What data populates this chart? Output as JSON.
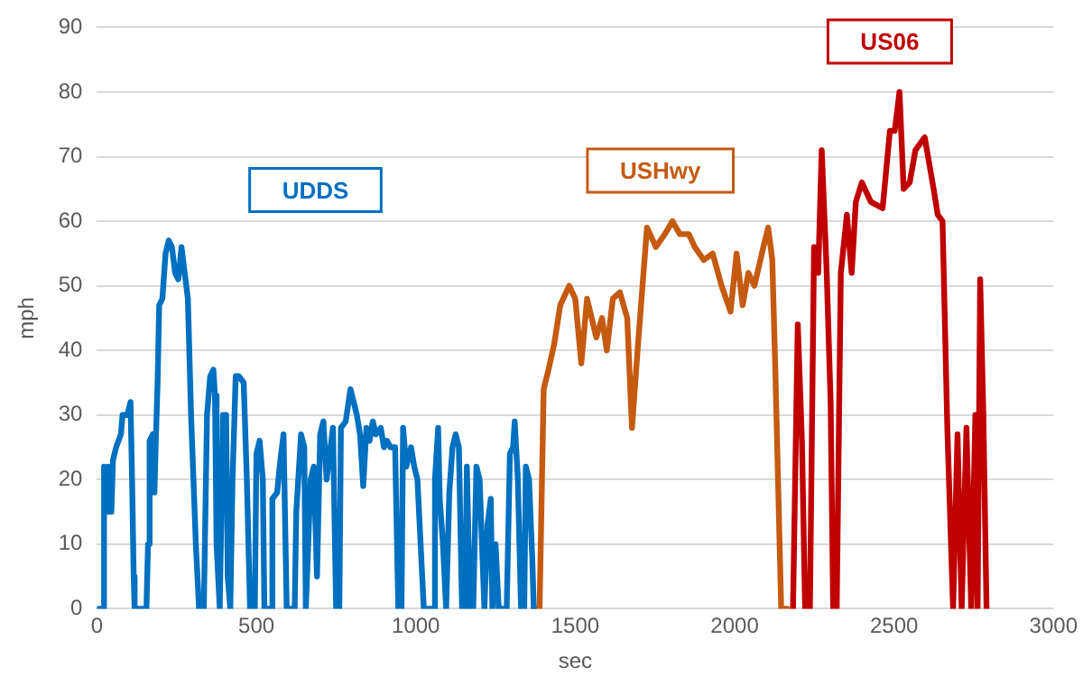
{
  "chart_data": {
    "type": "line",
    "xlabel": "sec",
    "ylabel": "mph",
    "xlim": [
      0,
      3000
    ],
    "xticks": [
      0,
      500,
      1000,
      1500,
      2000,
      2500,
      3000
    ],
    "ylim": [
      0,
      90
    ],
    "yticks": [
      0,
      10,
      20,
      30,
      40,
      50,
      60,
      70,
      80,
      90
    ],
    "grid": "y",
    "legend": false,
    "marker": "none",
    "line_style": "solid",
    "series": [
      {
        "name": "UDDS",
        "color": "#0070c0",
        "x": [
          0,
          20,
          22,
          30,
          35,
          45,
          50,
          60,
          75,
          80,
          95,
          105,
          110,
          115,
          118,
          155,
          160,
          165,
          175,
          180,
          185,
          190,
          195,
          205,
          215,
          225,
          235,
          245,
          255,
          265,
          275,
          285,
          295,
          310,
          320,
          335,
          345,
          355,
          365,
          370,
          375,
          385,
          395,
          405,
          410,
          418,
          425,
          435,
          445,
          460,
          470,
          480,
          495,
          500,
          510,
          520,
          525,
          545,
          550,
          565,
          575,
          585,
          595,
          620,
          625,
          640,
          650,
          655,
          670,
          680,
          690,
          700,
          710,
          720,
          730,
          740,
          750,
          760,
          765,
          780,
          795,
          805,
          815,
          825,
          835,
          845,
          855,
          865,
          875,
          890,
          900,
          910,
          920,
          935,
          945,
          955,
          960,
          970,
          985,
          995,
          1005,
          1025,
          1055,
          1060,
          1070,
          1075,
          1085,
          1095,
          1105,
          1115,
          1125,
          1135,
          1145,
          1155,
          1160,
          1170,
          1180,
          1190,
          1200,
          1215,
          1225,
          1235,
          1240,
          1250,
          1260,
          1285,
          1295,
          1305,
          1310,
          1320,
          1330,
          1340,
          1345,
          1355,
          1365,
          1370
        ],
        "values": [
          0,
          0,
          22,
          15,
          22,
          15,
          23,
          25,
          27,
          30,
          30,
          32,
          20,
          5,
          0,
          0,
          10,
          26,
          27,
          18,
          27,
          35,
          47,
          48,
          55,
          57,
          56,
          52,
          51,
          56,
          52,
          48,
          30,
          10,
          0,
          0,
          30,
          36,
          37,
          33,
          10,
          0,
          30,
          30,
          5,
          0,
          20,
          36,
          36,
          35,
          20,
          0,
          0,
          24,
          26,
          20,
          0,
          0,
          17,
          18,
          23,
          27,
          0,
          0,
          15,
          27,
          25,
          0,
          20,
          22,
          5,
          27,
          29,
          20,
          24,
          28,
          0,
          0,
          28,
          29,
          34,
          32,
          30,
          27,
          19,
          28,
          26,
          29,
          27,
          28,
          25,
          26,
          25,
          25,
          0,
          0,
          28,
          22,
          25,
          22,
          20,
          0,
          0,
          20,
          28,
          17,
          10,
          0,
          18,
          25,
          27,
          25,
          0,
          0,
          22,
          0,
          0,
          22,
          20,
          0,
          13,
          17,
          0,
          10,
          0,
          0,
          24,
          25,
          29,
          20,
          0,
          0,
          22,
          20,
          8,
          0
        ]
      },
      {
        "name": "USHwy",
        "color": "#c55a11",
        "x": [
          1369,
          1388,
          1401,
          1416,
          1434,
          1453,
          1481,
          1500,
          1519,
          1537,
          1566,
          1584,
          1599,
          1618,
          1640,
          1663,
          1678,
          1697,
          1725,
          1753,
          1781,
          1805,
          1828,
          1856,
          1875,
          1903,
          1931,
          1959,
          1987,
          2006,
          2025,
          2043,
          2062,
          2090,
          2105,
          2118,
          2127,
          2146,
          2165
        ],
        "values": [
          0,
          0,
          34,
          37,
          41,
          47,
          50,
          48,
          38,
          48,
          42,
          45,
          40,
          48,
          49,
          45,
          28,
          41,
          59,
          56,
          58,
          60,
          58,
          58,
          56,
          54,
          55,
          50,
          46,
          55,
          47,
          52,
          50,
          56,
          59,
          54,
          38,
          0,
          0
        ]
      },
      {
        "name": "US06",
        "color": "#c00000",
        "x": [
          2183,
          2198,
          2211,
          2221,
          2236,
          2249,
          2262,
          2273,
          2288,
          2301,
          2309,
          2320,
          2333,
          2352,
          2367,
          2380,
          2399,
          2427,
          2464,
          2487,
          2502,
          2517,
          2530,
          2549,
          2567,
          2596,
          2624,
          2637,
          2652,
          2667,
          2685,
          2699,
          2712,
          2727,
          2742,
          2755,
          2762,
          2770,
          2780,
          2790
        ],
        "values": [
          0,
          44,
          26,
          0,
          0,
          56,
          52,
          71,
          53,
          32,
          0,
          0,
          52,
          61,
          52,
          63,
          66,
          63,
          62,
          74,
          74,
          80,
          65,
          66,
          71,
          73,
          65,
          61,
          60,
          28,
          0,
          27,
          0,
          28,
          0,
          30,
          0,
          51,
          30,
          0
        ]
      }
    ]
  }
}
